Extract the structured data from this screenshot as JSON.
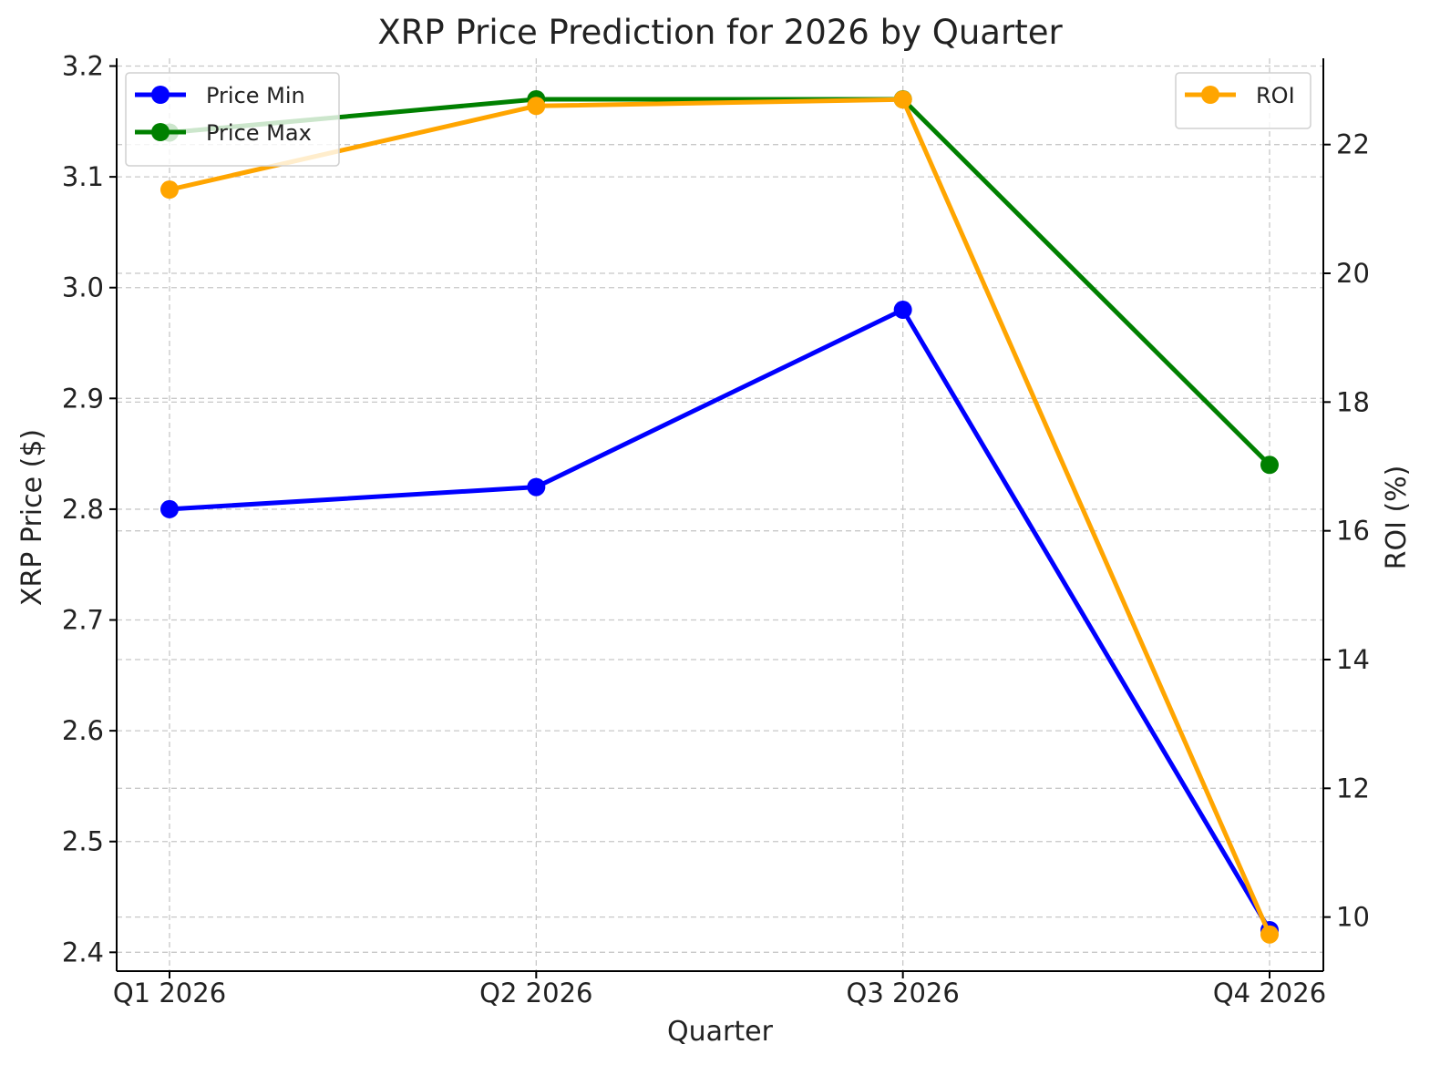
{
  "chart_data": {
    "type": "line",
    "title": "XRP Price Prediction for 2026 by Quarter",
    "xlabel": "Quarter",
    "ylabel": "XRP Price ($)",
    "y2label": "ROI (%)",
    "categories": [
      "Q1 2026",
      "Q2 2026",
      "Q3 2026",
      "Q4 2026"
    ],
    "ylim": [
      2.383,
      3.207
    ],
    "yticks": [
      "2.4",
      "2.5",
      "2.6",
      "2.7",
      "2.8",
      "2.9",
      "3.0",
      "3.1",
      "3.2"
    ],
    "y2lim": [
      9.16,
      23.34
    ],
    "y2ticks": [
      "10",
      "12",
      "14",
      "16",
      "18",
      "20",
      "22"
    ],
    "grid": true,
    "series": [
      {
        "name": "Price Min",
        "axis": "left",
        "color": "#0000ff",
        "values": [
          2.8,
          2.82,
          2.98,
          2.42
        ]
      },
      {
        "name": "Price Max",
        "axis": "left",
        "color": "#008000",
        "values": [
          3.14,
          3.17,
          3.17,
          2.84
        ]
      },
      {
        "name": "ROI",
        "axis": "right",
        "color": "#ffa500",
        "values": [
          21.3,
          22.6,
          22.7,
          9.73
        ]
      }
    ],
    "legend_left": {
      "placement": "upper-left",
      "entries": [
        "Price Min",
        "Price Max"
      ]
    },
    "legend_right": {
      "placement": "upper-right",
      "entries": [
        "ROI"
      ]
    }
  }
}
